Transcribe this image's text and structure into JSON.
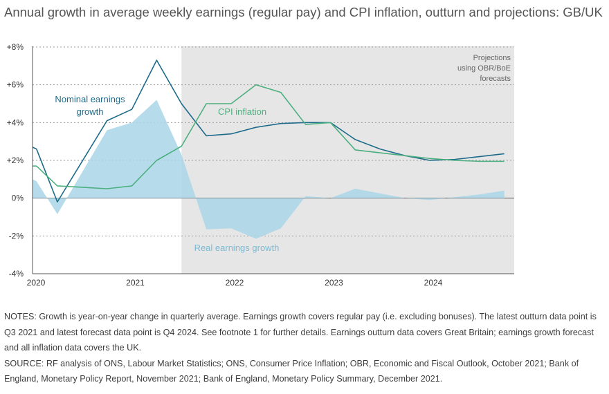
{
  "title": "Annual growth in average weekly earnings (regular pay) and CPI inflation, outturn and projections: GB/UK",
  "chart_data": {
    "type": "line",
    "title": "Annual growth in average weekly earnings (regular pay) and CPI inflation, outturn and projections: GB/UK",
    "x_ticks": [
      "2020",
      "2021",
      "2022",
      "2023",
      "2024"
    ],
    "y_ticks": [
      "+8%",
      "+6%",
      "+4%",
      "+2%",
      "0%",
      "-2%",
      "-4%"
    ],
    "ylim": [
      -4,
      8
    ],
    "xlim": [
      2020.0,
      2024.85
    ],
    "grid": true,
    "projection_label": [
      "Projections",
      "using OBR/BoE",
      "forecasts"
    ],
    "projection_start": 2021.5,
    "series": [
      {
        "name": "Nominal earnings growth",
        "label_lines": [
          "Nominal earnings",
          "growth"
        ],
        "type": "line",
        "color": "#1d6b8a",
        "x": [
          2020.0,
          2020.04,
          2020.25,
          2020.75,
          2021.0,
          2021.25,
          2021.5,
          2021.75,
          2022.0,
          2022.25,
          2022.5,
          2022.75,
          2023.0,
          2023.25,
          2023.5,
          2023.75,
          2024.0,
          2024.25,
          2024.5,
          2024.75
        ],
        "values": [
          2.7,
          2.6,
          -0.2,
          4.1,
          4.7,
          7.3,
          5.0,
          3.3,
          3.4,
          3.75,
          3.95,
          4.0,
          4.0,
          3.1,
          2.6,
          2.25,
          2.0,
          2.05,
          2.2,
          2.35
        ]
      },
      {
        "name": "CPI inflation",
        "label_lines": [
          "CPI inflation"
        ],
        "type": "line",
        "color": "#4caf7f",
        "x": [
          2020.0,
          2020.04,
          2020.25,
          2020.75,
          2021.0,
          2021.25,
          2021.5,
          2021.75,
          2022.0,
          2022.25,
          2022.5,
          2022.75,
          2023.0,
          2023.25,
          2023.5,
          2023.75,
          2024.0,
          2024.25,
          2024.5,
          2024.75
        ],
        "values": [
          1.7,
          1.7,
          0.65,
          0.5,
          0.65,
          2.0,
          2.75,
          5.0,
          5.0,
          6.0,
          5.6,
          3.9,
          4.0,
          2.55,
          2.4,
          2.25,
          2.1,
          2.0,
          1.95,
          1.95
        ]
      },
      {
        "name": "Real earnings growth",
        "label_lines": [
          "Real earnings growth"
        ],
        "type": "area",
        "color": "#a9d6e8",
        "label_color": "#7cb9d2",
        "x": [
          2020.0,
          2020.04,
          2020.25,
          2020.75,
          2021.0,
          2021.25,
          2021.5,
          2021.75,
          2022.0,
          2022.25,
          2022.5,
          2022.75,
          2023.0,
          2023.25,
          2023.5,
          2023.75,
          2024.0,
          2024.25,
          2024.5,
          2024.75
        ],
        "values": [
          1.0,
          0.9,
          -0.85,
          3.6,
          4.0,
          5.2,
          2.3,
          -1.65,
          -1.6,
          -2.15,
          -1.6,
          0.1,
          0.0,
          0.5,
          0.25,
          0.0,
          -0.1,
          0.05,
          0.2,
          0.4
        ]
      }
    ]
  },
  "notes": {
    "notes_text": "NOTES: Growth is year-on-year change in quarterly average. Earnings growth covers regular pay (i.e. excluding bonuses). The latest outturn data point is Q3 2021 and latest forecast data point is Q4 2024. See footnote 1 for further details. Earnings outturn data covers Great Britain; earnings growth forecast and all inflation data covers the UK.",
    "source_text": "SOURCE: RF analysis of ONS, Labour Market Statistics; ONS, Consumer Price Inflation; OBR, Economic and Fiscal Outlook, October 2021; Bank of England, Monetary Policy Report, November 2021; Bank of England, Monetary Policy Summary, December 2021."
  }
}
